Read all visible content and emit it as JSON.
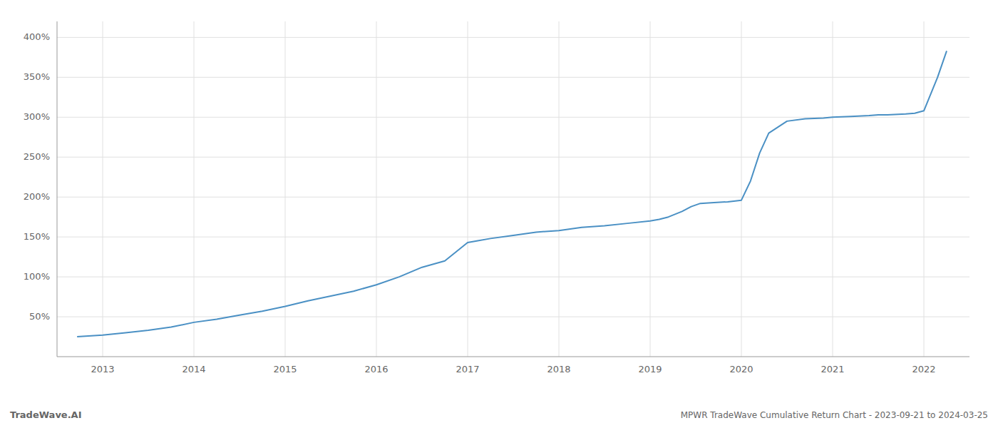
{
  "chart_data": {
    "type": "line",
    "title": "MPWR TradeWave Cumulative Return Chart - 2023-09-21 to 2024-03-25",
    "annotations": [
      "TradeWave.AI"
    ],
    "color": "#4a90c4",
    "grid": true,
    "x": [
      2012.72,
      2013.0,
      2013.25,
      2013.5,
      2013.75,
      2014.0,
      2014.25,
      2014.5,
      2014.75,
      2015.0,
      2015.25,
      2015.5,
      2015.75,
      2016.0,
      2016.25,
      2016.5,
      2016.75,
      2017.0,
      2017.1,
      2017.25,
      2017.5,
      2017.75,
      2018.0,
      2018.25,
      2018.5,
      2018.75,
      2019.0,
      2019.1,
      2019.2,
      2019.35,
      2019.45,
      2019.55,
      2019.7,
      2019.85,
      2020.0,
      2020.1,
      2020.2,
      2020.3,
      2020.5,
      2020.7,
      2020.9,
      2021.0,
      2021.2,
      2021.4,
      2021.5,
      2021.6,
      2021.8,
      2021.9,
      2022.0,
      2022.15,
      2022.25
    ],
    "values": [
      25,
      27,
      30,
      33,
      37,
      43,
      47,
      52,
      57,
      63,
      70,
      76,
      82,
      90,
      100,
      112,
      120,
      143,
      145,
      148,
      152,
      156,
      158,
      162,
      164,
      167,
      170,
      172,
      175,
      182,
      188,
      192,
      193,
      194,
      196,
      220,
      255,
      280,
      295,
      298,
      299,
      300,
      301,
      302,
      303,
      303,
      304,
      305,
      308,
      350,
      383
    ],
    "xlim": [
      2012.5,
      2022.5
    ],
    "ylim": [
      0,
      420
    ],
    "xticks": [
      2013,
      2014,
      2015,
      2016,
      2017,
      2018,
      2019,
      2020,
      2021,
      2022
    ],
    "yticks": [
      {
        "value": 50,
        "label": "50%"
      },
      {
        "value": 100,
        "label": "100%"
      },
      {
        "value": 150,
        "label": "150%"
      },
      {
        "value": 200,
        "label": "200%"
      },
      {
        "value": 250,
        "label": "250%"
      },
      {
        "value": 300,
        "label": "300%"
      },
      {
        "value": 350,
        "label": "350%"
      },
      {
        "value": 400,
        "label": "400%"
      }
    ]
  }
}
